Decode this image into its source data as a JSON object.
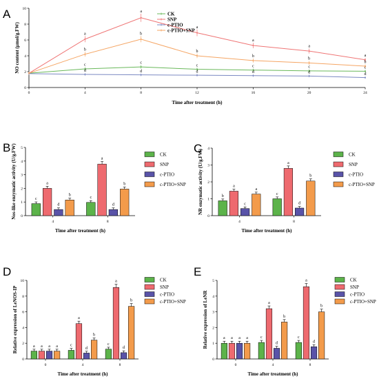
{
  "colors": {
    "CK": "#5cb34a",
    "SNP": "#ee6a6f",
    "c-PTIO": "#5953a8",
    "c-PTIO+SNP": "#f39b4b",
    "line_CK": "#69b85a",
    "line_SNP": "#ef7474",
    "line_cPTIO": "#7b89c2",
    "line_cPTIOSNP": "#f5a563"
  },
  "chart_data": [
    {
      "panel": "A",
      "type": "line",
      "ylabel": "NO content (μmol/g.FW)",
      "xlabel": "Time after treatment (h)",
      "x": [
        0,
        4,
        8,
        12,
        16,
        20,
        24
      ],
      "xlim": [
        0,
        24
      ],
      "ylim": [
        0,
        10
      ],
      "yticks": [
        0,
        2,
        4,
        6,
        8,
        10
      ],
      "legend": "top",
      "series": [
        {
          "name": "CK",
          "values": [
            1.8,
            2.35,
            2.6,
            2.3,
            2.2,
            2.1,
            2.05
          ],
          "labels": [
            "",
            "c",
            "c",
            "c",
            "c",
            "c",
            "c"
          ]
        },
        {
          "name": "SNP",
          "values": [
            1.8,
            6.1,
            8.8,
            6.9,
            5.3,
            4.6,
            3.5
          ],
          "labels": [
            "",
            "a",
            "a",
            "a",
            "a",
            "a",
            "a"
          ]
        },
        {
          "name": "c-PTIO",
          "values": [
            1.75,
            1.65,
            1.6,
            1.55,
            1.5,
            1.45,
            1.25
          ],
          "labels": [
            "",
            "d",
            "d",
            "d",
            "d",
            "d",
            "d"
          ]
        },
        {
          "name": "c-PTIO+SNP",
          "values": [
            1.8,
            4.2,
            6.1,
            4.0,
            3.4,
            3.1,
            2.7
          ],
          "labels": [
            "",
            "b",
            "b",
            "b",
            "b",
            "b",
            "b"
          ]
        }
      ]
    },
    {
      "panel": "B",
      "type": "bar",
      "ylabel": "Nos-like enzymatic activity (U/g.FW)",
      "xlabel": "Time after treatment (h)",
      "categories": [
        "4",
        "8"
      ],
      "ylim": [
        0,
        5
      ],
      "yticks": [
        0,
        1,
        2,
        3,
        4,
        5
      ],
      "legend": "right",
      "series": [
        {
          "name": "CK",
          "values": [
            0.88,
            0.97
          ],
          "labels": [
            "c",
            "c"
          ]
        },
        {
          "name": "SNP",
          "values": [
            2.0,
            3.78
          ],
          "labels": [
            "a",
            "a"
          ]
        },
        {
          "name": "c-PTIO",
          "values": [
            0.45,
            0.45
          ],
          "labels": [
            "d",
            "d"
          ]
        },
        {
          "name": "c-PTIO+SNP",
          "values": [
            1.15,
            1.95
          ],
          "labels": [
            "b",
            "b"
          ]
        }
      ]
    },
    {
      "panel": "C",
      "type": "bar",
      "ylabel": "NR enzymatic activity (U/g.FW)",
      "xlabel": "Time after treatment (h)",
      "categories": [
        "4",
        "8"
      ],
      "ylim": [
        0,
        4
      ],
      "yticks": [
        0,
        1,
        2,
        3,
        4
      ],
      "legend": "right",
      "series": [
        {
          "name": "CK",
          "values": [
            0.88,
            1.0
          ],
          "labels": [
            "b",
            "c"
          ]
        },
        {
          "name": "SNP",
          "values": [
            1.45,
            2.8
          ],
          "labels": [
            "a",
            "a"
          ]
        },
        {
          "name": "c-PTIO",
          "values": [
            0.42,
            0.45
          ],
          "labels": [
            "c",
            "d"
          ]
        },
        {
          "name": "c-PTIO+SNP",
          "values": [
            1.28,
            2.05
          ],
          "labels": [
            "a",
            "b"
          ]
        }
      ]
    },
    {
      "panel": "D",
      "type": "bar",
      "ylabel": "Relative expression of LeNOS-IP",
      "xlabel": "Time after treatment (h)",
      "categories": [
        "0",
        "4",
        "8"
      ],
      "ylim": [
        0,
        10
      ],
      "yticks": [
        0,
        2,
        4,
        6,
        8,
        10
      ],
      "legend": "right",
      "series": [
        {
          "name": "CK",
          "values": [
            1.0,
            1.1,
            1.25
          ],
          "labels": [
            "a",
            "c",
            "c"
          ]
        },
        {
          "name": "SNP",
          "values": [
            1.0,
            4.5,
            9.1
          ],
          "labels": [
            "a",
            "a",
            "a"
          ]
        },
        {
          "name": "c-PTIO",
          "values": [
            1.0,
            0.75,
            0.8
          ],
          "labels": [
            "a",
            "d",
            "d"
          ]
        },
        {
          "name": "c-PTIO+SNP",
          "values": [
            1.0,
            2.4,
            6.7
          ],
          "labels": [
            "a",
            "b",
            "b"
          ]
        }
      ]
    },
    {
      "panel": "E",
      "type": "bar",
      "ylabel": "Relative expression of LeNR",
      "xlabel": "Time after treatment (h)",
      "categories": [
        "0",
        "4",
        "8"
      ],
      "ylim": [
        0,
        5
      ],
      "yticks": [
        0,
        1,
        2,
        3,
        4,
        5
      ],
      "legend": "right",
      "series": [
        {
          "name": "CK",
          "values": [
            1.0,
            1.05,
            1.05
          ],
          "labels": [
            "a",
            "c",
            "c"
          ]
        },
        {
          "name": "SNP",
          "values": [
            1.0,
            3.2,
            4.6
          ],
          "labels": [
            "a",
            "a",
            "a"
          ]
        },
        {
          "name": "c-PTIO",
          "values": [
            1.0,
            0.68,
            0.78
          ],
          "labels": [
            "a",
            "d",
            "d"
          ]
        },
        {
          "name": "c-PTIO+SNP",
          "values": [
            1.0,
            2.35,
            3.0
          ],
          "labels": [
            "a",
            "b",
            "b"
          ]
        }
      ]
    }
  ]
}
